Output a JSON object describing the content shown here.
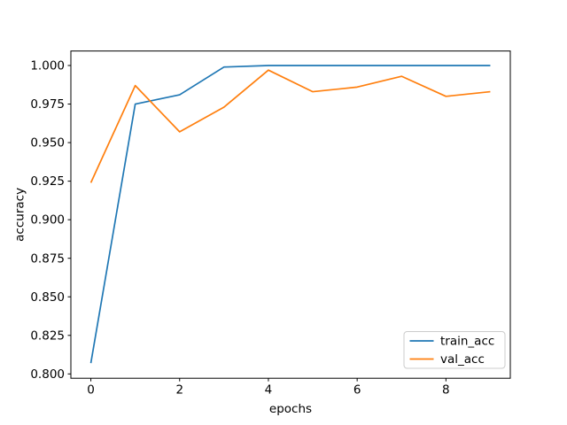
{
  "chart_data": {
    "type": "line",
    "title": "",
    "xlabel": "epochs",
    "ylabel": "accuracy",
    "x": [
      0,
      1,
      2,
      3,
      4,
      5,
      6,
      7,
      8,
      9
    ],
    "series": [
      {
        "name": "train_acc",
        "color": "#1f77b4",
        "values": [
          0.807,
          0.975,
          0.981,
          0.999,
          1.0,
          1.0,
          1.0,
          1.0,
          1.0,
          1.0
        ]
      },
      {
        "name": "val_acc",
        "color": "#ff7f0e",
        "values": [
          0.924,
          0.987,
          0.957,
          0.973,
          0.997,
          0.983,
          0.986,
          0.993,
          0.98,
          0.983
        ]
      }
    ],
    "xlim": [
      -0.45,
      9.45
    ],
    "ylim": [
      0.7972,
      1.0094
    ],
    "xticks": [
      0,
      2,
      4,
      6,
      8
    ],
    "yticks": [
      0.8,
      0.825,
      0.85,
      0.875,
      0.9,
      0.925,
      0.95,
      0.975,
      1.0
    ],
    "ytick_decimals": 3,
    "grid": false,
    "legend": {
      "position": "lower right",
      "entries": [
        "train_acc",
        "val_acc"
      ],
      "border_color": "#cccccc",
      "background_color": "#ffffff"
    },
    "spine_color": "#000000",
    "background_color": "#ffffff"
  }
}
